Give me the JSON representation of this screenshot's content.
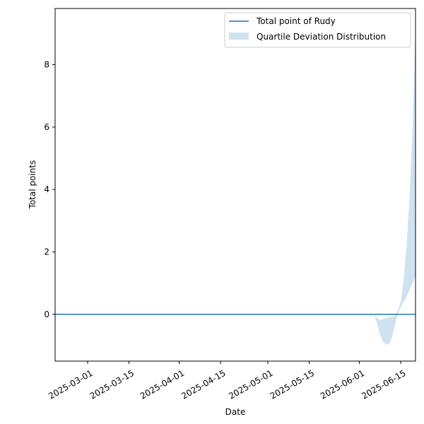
{
  "chart_data": {
    "type": "line",
    "title": "",
    "xlabel": "Date",
    "ylabel": "Total points",
    "xlim": [
      "2025-02-18",
      "2025-06-20"
    ],
    "ylim": [
      -1.5,
      9.8
    ],
    "grid": false,
    "legend_position": "top-right",
    "x_ticks": [
      "2025-03-01",
      "2025-03-15",
      "2025-04-01",
      "2025-04-15",
      "2025-05-01",
      "2025-05-15",
      "2025-06-01",
      "2025-06-15"
    ],
    "y_ticks": [
      0,
      2,
      4,
      6,
      8
    ],
    "colors": {
      "line": "#1f77b4",
      "band": "#cfe2f0"
    },
    "series": [
      {
        "name": "Total point of Rudy",
        "kind": "line",
        "x": [
          "2025-02-18",
          "2025-06-20"
        ],
        "y": [
          0,
          0
        ]
      },
      {
        "name": "Quartile Deviation Distribution",
        "kind": "band",
        "x": [
          "2025-06-06",
          "2025-06-07",
          "2025-06-08",
          "2025-06-09",
          "2025-06-10",
          "2025-06-11",
          "2025-06-12",
          "2025-06-13",
          "2025-06-14",
          "2025-06-15",
          "2025-06-16",
          "2025-06-17",
          "2025-06-18",
          "2025-06-19",
          "2025-06-20"
        ],
        "lower": [
          0,
          -0.3,
          -0.65,
          -0.88,
          -0.97,
          -0.95,
          -0.75,
          -0.35,
          0.0,
          0.22,
          0.4,
          0.58,
          0.78,
          1.0,
          1.25
        ],
        "upper": [
          0,
          -0.12,
          -0.18,
          -0.15,
          -0.12,
          -0.1,
          -0.08,
          -0.05,
          0.1,
          0.4,
          1.1,
          2.2,
          3.8,
          6.0,
          9.2
        ]
      }
    ]
  }
}
